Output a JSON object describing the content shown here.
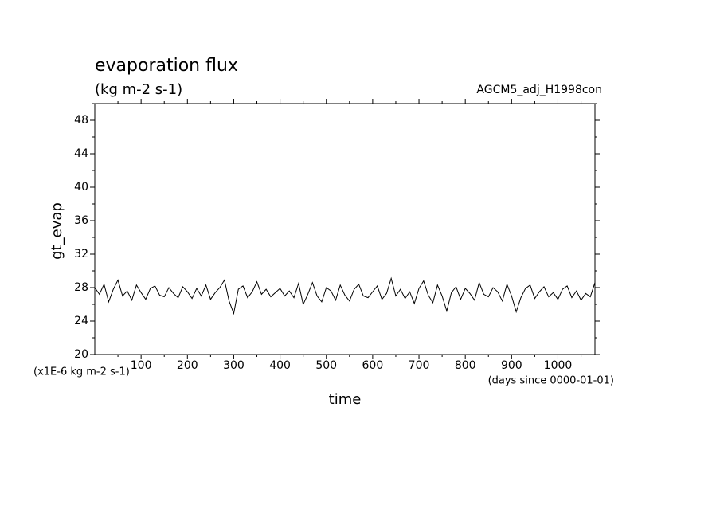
{
  "chart_data": {
    "type": "line",
    "title": "evaporation flux",
    "subtitle": "(kg m-2 s-1)",
    "annotation": "AGCM5_adj_H1998con",
    "ylabel": "gt_evap",
    "xlabel": "time",
    "yunits": "(x1E-6 kg m-2 s-1)",
    "xunits": "(days since 0000-01-01)",
    "xlim": [
      0,
      1080
    ],
    "ylim": [
      20,
      50
    ],
    "xticks": [
      100,
      200,
      300,
      400,
      500,
      600,
      700,
      800,
      900,
      1000
    ],
    "yticks": [
      20,
      24,
      28,
      32,
      36,
      40,
      44,
      48
    ],
    "xminorticks": [
      50,
      150,
      250,
      350,
      450,
      550,
      650,
      750,
      850,
      950,
      1050
    ],
    "yminorticks": [
      22,
      26,
      30,
      34,
      38,
      42,
      46,
      50
    ],
    "color": "#000000",
    "x": [
      0,
      10,
      20,
      30,
      40,
      50,
      60,
      70,
      80,
      90,
      100,
      110,
      120,
      130,
      140,
      150,
      160,
      170,
      180,
      190,
      200,
      210,
      220,
      230,
      240,
      250,
      260,
      270,
      280,
      290,
      300,
      310,
      320,
      330,
      340,
      350,
      360,
      370,
      380,
      390,
      400,
      410,
      420,
      430,
      440,
      450,
      460,
      470,
      480,
      490,
      500,
      510,
      520,
      530,
      540,
      550,
      560,
      570,
      580,
      590,
      600,
      610,
      620,
      630,
      640,
      650,
      660,
      670,
      680,
      690,
      700,
      710,
      720,
      730,
      740,
      750,
      760,
      770,
      780,
      790,
      800,
      810,
      820,
      830,
      840,
      850,
      860,
      870,
      880,
      890,
      900,
      910,
      920,
      930,
      940,
      950,
      960,
      970,
      980,
      990,
      1000,
      1010,
      1020,
      1030,
      1040,
      1050,
      1060,
      1070,
      1080
    ],
    "values": [
      28.0,
      27.2,
      28.4,
      26.3,
      27.8,
      28.9,
      27.0,
      27.6,
      26.5,
      28.3,
      27.4,
      26.6,
      27.9,
      28.2,
      27.1,
      26.9,
      28.0,
      27.3,
      26.8,
      28.1,
      27.5,
      26.7,
      27.9,
      27.0,
      28.3,
      26.6,
      27.4,
      28.0,
      28.9,
      26.4,
      24.9,
      27.8,
      28.2,
      26.8,
      27.5,
      28.7,
      27.2,
      27.8,
      26.9,
      27.4,
      27.9,
      27.0,
      27.6,
      26.8,
      28.5,
      26.0,
      27.2,
      28.6,
      27.0,
      26.3,
      28.0,
      27.6,
      26.5,
      28.3,
      27.1,
      26.4,
      27.8,
      28.4,
      27.0,
      26.8,
      27.5,
      28.2,
      26.6,
      27.3,
      29.1,
      27.0,
      27.8,
      26.7,
      27.5,
      26.1,
      27.9,
      28.8,
      27.1,
      26.2,
      28.3,
      27.0,
      25.2,
      27.4,
      28.1,
      26.6,
      27.9,
      27.3,
      26.5,
      28.6,
      27.2,
      26.9,
      28.0,
      27.5,
      26.4,
      28.4,
      27.0,
      25.1,
      26.8,
      27.9,
      28.3,
      26.7,
      27.5,
      28.1,
      26.9,
      27.4,
      26.6,
      27.8,
      28.2,
      26.8,
      27.6,
      26.5,
      27.3,
      26.9,
      28.6
    ]
  }
}
